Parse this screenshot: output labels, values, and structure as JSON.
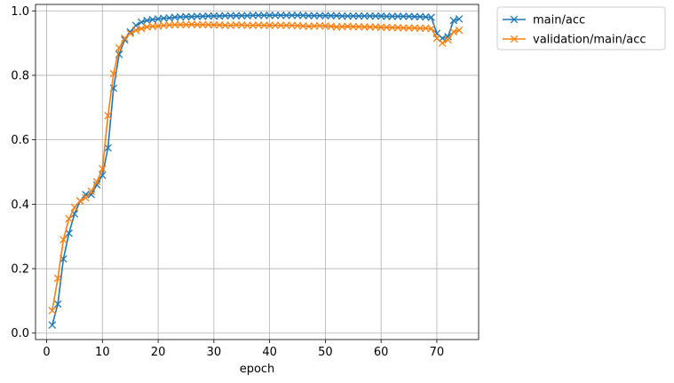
{
  "chart_data": {
    "type": "line",
    "title": "",
    "xlabel": "epoch",
    "ylabel": "",
    "xlim": [
      -2,
      77.5
    ],
    "ylim": [
      -0.02,
      1.02
    ],
    "xticks": [
      0,
      10,
      20,
      30,
      40,
      50,
      60,
      70
    ],
    "yticks": [
      0.0,
      0.2,
      0.4,
      0.6,
      0.8,
      1.0
    ],
    "grid": true,
    "legend_position": "outside-top-right",
    "x": [
      1,
      2,
      3,
      4,
      5,
      6,
      7,
      8,
      9,
      10,
      11,
      12,
      13,
      14,
      15,
      16,
      17,
      18,
      19,
      20,
      21,
      22,
      23,
      24,
      25,
      26,
      27,
      28,
      29,
      30,
      31,
      32,
      33,
      34,
      35,
      36,
      37,
      38,
      39,
      40,
      41,
      42,
      43,
      44,
      45,
      46,
      47,
      48,
      49,
      50,
      51,
      52,
      53,
      54,
      55,
      56,
      57,
      58,
      59,
      60,
      61,
      62,
      63,
      64,
      65,
      66,
      67,
      68,
      69,
      70,
      71,
      72,
      73,
      74
    ],
    "series": [
      {
        "name": "main/acc",
        "color": "#1f77b4",
        "marker": "x",
        "values": [
          0.025,
          0.09,
          0.23,
          0.31,
          0.37,
          0.41,
          0.43,
          0.43,
          0.46,
          0.49,
          0.575,
          0.76,
          0.865,
          0.91,
          0.935,
          0.955,
          0.965,
          0.97,
          0.973,
          0.975,
          0.977,
          0.978,
          0.98,
          0.981,
          0.982,
          0.982,
          0.983,
          0.983,
          0.984,
          0.984,
          0.984,
          0.985,
          0.985,
          0.985,
          0.985,
          0.985,
          0.986,
          0.986,
          0.986,
          0.986,
          0.986,
          0.986,
          0.986,
          0.986,
          0.986,
          0.986,
          0.985,
          0.985,
          0.985,
          0.985,
          0.985,
          0.985,
          0.984,
          0.984,
          0.984,
          0.984,
          0.984,
          0.984,
          0.984,
          0.984,
          0.983,
          0.983,
          0.983,
          0.983,
          0.983,
          0.982,
          0.982,
          0.981,
          0.98,
          0.93,
          0.915,
          0.92,
          0.97,
          0.975
        ]
      },
      {
        "name": "validation/main/acc",
        "color": "#ff7f0e",
        "marker": "x",
        "values": [
          0.07,
          0.17,
          0.29,
          0.355,
          0.39,
          0.41,
          0.42,
          0.44,
          0.47,
          0.51,
          0.675,
          0.805,
          0.885,
          0.915,
          0.93,
          0.94,
          0.945,
          0.95,
          0.952,
          0.953,
          0.955,
          0.956,
          0.957,
          0.957,
          0.957,
          0.958,
          0.957,
          0.957,
          0.957,
          0.956,
          0.956,
          0.955,
          0.955,
          0.956,
          0.956,
          0.955,
          0.955,
          0.956,
          0.955,
          0.955,
          0.955,
          0.955,
          0.955,
          0.955,
          0.954,
          0.953,
          0.952,
          0.953,
          0.954,
          0.953,
          0.952,
          0.95,
          0.951,
          0.952,
          0.951,
          0.951,
          0.95,
          0.95,
          0.95,
          0.949,
          0.949,
          0.948,
          0.948,
          0.947,
          0.947,
          0.947,
          0.946,
          0.946,
          0.945,
          0.915,
          0.9,
          0.91,
          0.935,
          0.94
        ]
      }
    ]
  }
}
